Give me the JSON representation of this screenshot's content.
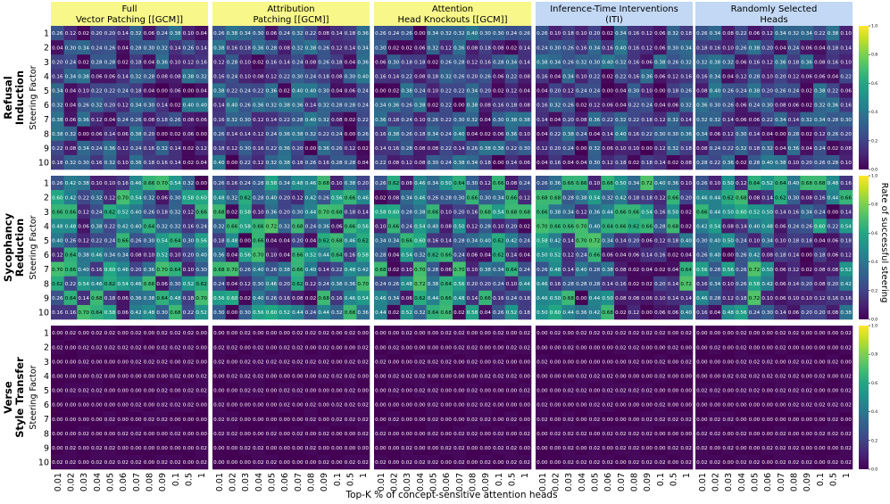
{
  "chart_data": {
    "type": "heatmap",
    "methods": [
      {
        "label": "Full Vector Patching [[GCM]]",
        "color": "#f7f78a"
      },
      {
        "label": "Attribution Patching [[GCM]]",
        "color": "#f7f78a"
      },
      {
        "label": "Attention Head Knockouts [[GCM]]",
        "color": "#f7f78a"
      },
      {
        "label": "Inference-Time Interventions (ITI)",
        "color": "#c2d8f4"
      },
      {
        "label": "Randomly Selected Heads",
        "color": "#c2d8f4"
      }
    ],
    "tasks": [
      {
        "label": "Refusal Induction",
        "seed": 11,
        "min": 0.0,
        "max": 0.4,
        "highlight": []
      },
      {
        "label": "Sycophancy Reduction",
        "seed": 29,
        "min": 0.0,
        "max": 0.72,
        "highlight": [
          [
            0,
            0,
            7
          ],
          [
            0,
            0,
            8
          ],
          [
            0,
            2,
            0
          ],
          [
            0,
            2,
            1
          ],
          [
            0,
            3,
            7
          ],
          [
            0,
            8,
            8
          ],
          [
            0,
            9,
            3
          ],
          [
            0,
            9,
            9
          ],
          [
            1,
            0,
            8
          ],
          [
            1,
            2,
            9
          ],
          [
            1,
            3,
            6
          ],
          [
            1,
            5,
            6
          ],
          [
            1,
            5,
            9
          ],
          [
            1,
            6,
            6
          ],
          [
            1,
            8,
            8
          ],
          [
            1,
            9,
            10
          ],
          [
            2,
            0,
            6
          ],
          [
            2,
            0,
            9
          ],
          [
            2,
            1,
            7
          ],
          [
            2,
            1,
            10
          ],
          [
            2,
            2,
            4
          ],
          [
            2,
            6,
            3
          ],
          [
            2,
            8,
            8
          ],
          [
            2,
            9,
            5
          ],
          [
            3,
            1,
            1
          ],
          [
            3,
            2,
            0
          ],
          [
            3,
            2,
            6
          ],
          [
            3,
            3,
            1
          ],
          [
            3,
            3,
            2
          ],
          [
            3,
            3,
            6
          ],
          [
            3,
            3,
            8
          ],
          [
            3,
            4,
            3
          ],
          [
            4,
            0,
            4
          ],
          [
            4,
            0,
            8
          ],
          [
            4,
            0,
            9
          ],
          [
            4,
            1,
            3
          ],
          [
            4,
            2,
            0
          ]
        ]
      },
      {
        "label": "Verse Style Transfer",
        "seed": 47,
        "min": 0.0,
        "max": 0.02,
        "highlight": []
      }
    ],
    "steering_factors": [
      1,
      2,
      3,
      4,
      5,
      6,
      7,
      8,
      9,
      10
    ],
    "top_k": [
      "0.01",
      "0.02",
      "0.03",
      "0.04",
      "0.05",
      "0.06",
      "0.07",
      "0.08",
      "0.09",
      "0.1",
      "0.5",
      "1"
    ],
    "ylabel": "Steering Factor",
    "xlabel": "Top-K % of concept-sensitive attention heads",
    "colorbar_label": "Rate of successful steering",
    "colorbar_ticks": [
      "0.0",
      "0.2",
      "0.4",
      "0.6",
      "0.8",
      "1.0"
    ],
    "colorbar_range": [
      0,
      1
    ],
    "colormap": "viridis"
  }
}
